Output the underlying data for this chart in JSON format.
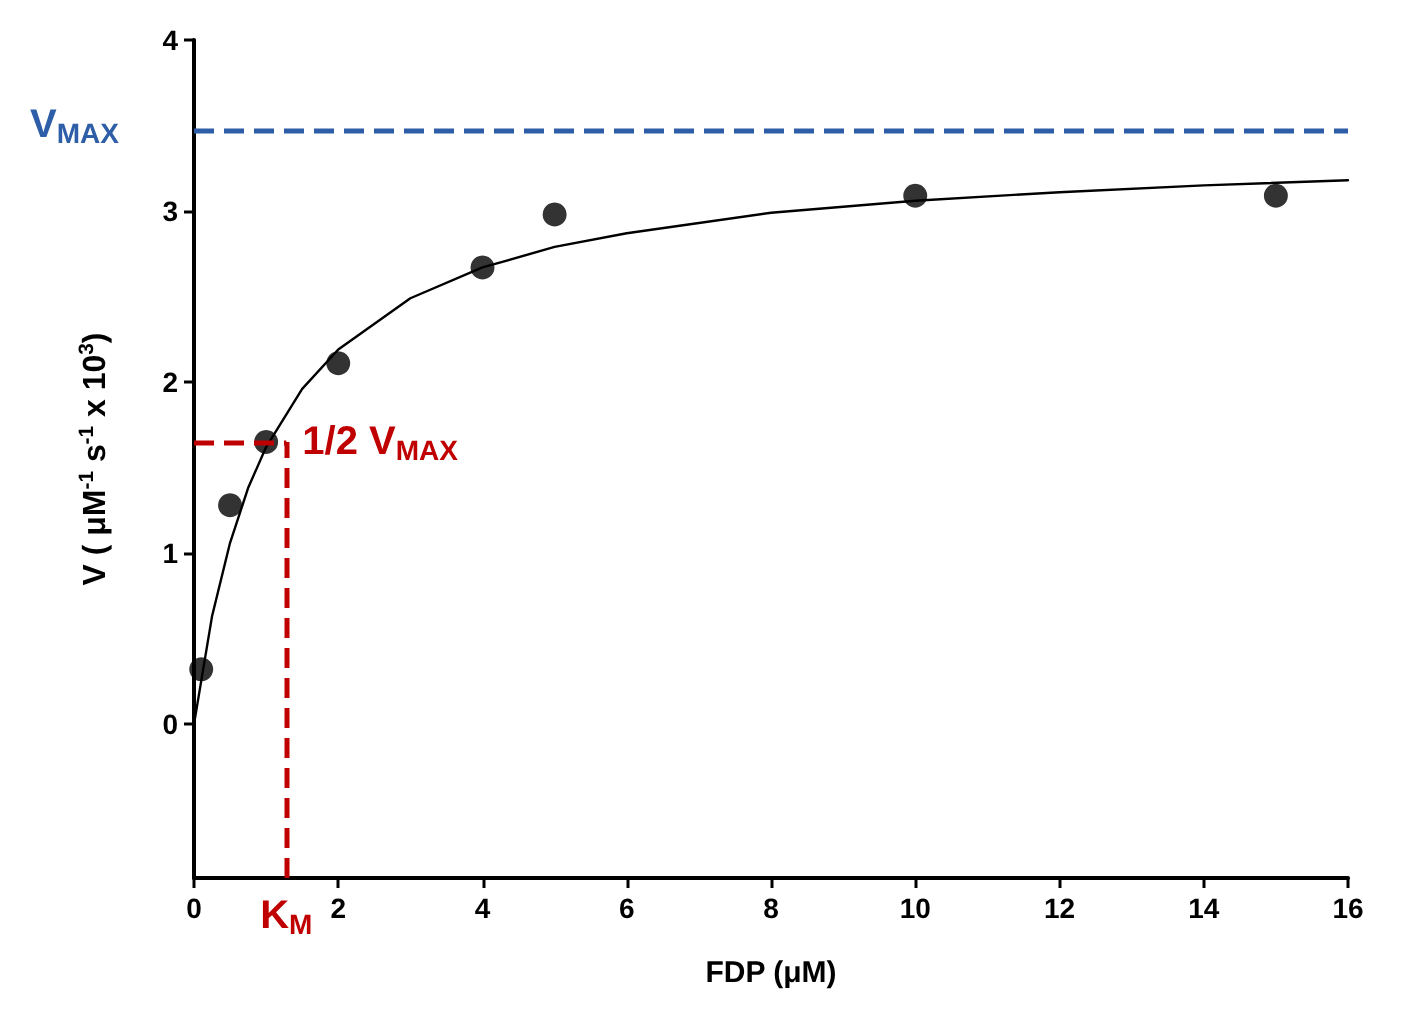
{
  "chart_data": {
    "type": "scatter",
    "xlabel": "FDP (μM)",
    "ylabel": "V ( μM$^{-1}$ s$^{-1}$ x 10$^{3}$)",
    "x": [
      0.1,
      0.5,
      1,
      2,
      4,
      5,
      10,
      15
    ],
    "series": [
      {
        "type": "scatter",
        "color": "#000000",
        "marker": "circle",
        "values": [
          0.32,
          1.28,
          1.65,
          2.11,
          2.67,
          2.98,
          3.09,
          3.09
        ]
      },
      {
        "type": "line",
        "color": "#000000",
        "marker": "none",
        "line_style": "solid",
        "x": [
          0,
          0.25,
          0.5,
          0.75,
          1,
          1.5,
          2,
          3,
          4,
          5,
          6,
          8,
          10,
          12,
          14,
          16
        ],
        "values": [
          0,
          0.63,
          1.06,
          1.38,
          1.62,
          1.96,
          2.19,
          2.49,
          2.67,
          2.79,
          2.87,
          2.99,
          3.06,
          3.11,
          3.15,
          3.18
        ]
      }
    ],
    "xlim": [
      0,
      16
    ],
    "xticks": [
      0,
      2,
      4,
      6,
      8,
      10,
      12,
      14,
      16
    ],
    "ylim": [
      -0.9,
      4
    ],
    "yticks": [
      0,
      1,
      2,
      3,
      4
    ],
    "ref_lines": [
      {
        "axis": "y",
        "value": 3.47,
        "label": "V$_{MAX}$",
        "color": "#2e5ea8",
        "line_style": "dashed"
      },
      {
        "axis": "y",
        "value": 1.65,
        "label": "1/2 V$_{MAX}$",
        "color": "#c00000",
        "line_style": "dashed"
      },
      {
        "axis": "x",
        "value": 1.28,
        "label": "K$_{M}$",
        "color": "#c00000",
        "line_style": "dashed"
      }
    ]
  }
}
